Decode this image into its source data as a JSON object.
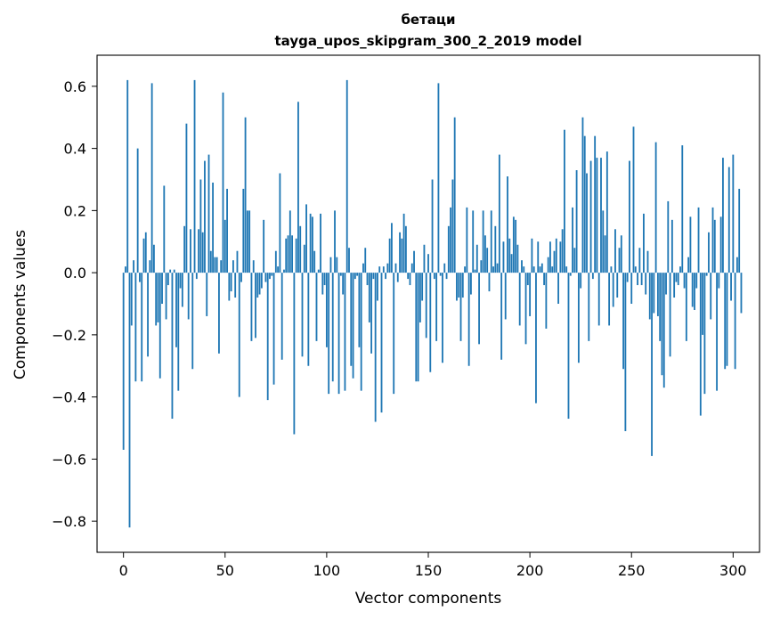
{
  "chart_data": {
    "type": "bar",
    "title": "бетаци",
    "subtitle": "tayga_upos_skipgram_300_2_2019 model",
    "xlabel": "Vector components",
    "ylabel": "Components values",
    "xlim": [
      -13,
      313
    ],
    "ylim": [
      -0.9,
      0.7
    ],
    "xticks": [
      0,
      50,
      100,
      150,
      200,
      250,
      300
    ],
    "yticks": [
      -0.8,
      -0.6,
      -0.4,
      -0.2,
      0.0,
      0.2,
      0.4,
      0.6
    ],
    "ytick_labels": [
      "−0.8",
      "−0.6",
      "−0.4",
      "−0.2",
      "0.0",
      "0.2",
      "0.4",
      "0.6"
    ],
    "bar_color": "#1f77b4",
    "series": [
      {
        "name": "бетаци",
        "values": [
          -0.57,
          0.02,
          0.62,
          -0.82,
          -0.17,
          0.04,
          -0.35,
          0.4,
          -0.03,
          -0.35,
          0.11,
          0.13,
          -0.27,
          0.04,
          0.61,
          0.09,
          -0.17,
          -0.16,
          -0.34,
          -0.1,
          0.28,
          -0.15,
          -0.04,
          0.01,
          -0.47,
          0.01,
          -0.24,
          -0.38,
          -0.05,
          -0.11,
          0.15,
          0.48,
          -0.15,
          0.14,
          -0.31,
          0.62,
          -0.02,
          0.14,
          0.3,
          0.13,
          0.36,
          -0.14,
          0.38,
          0.07,
          0.29,
          0.05,
          0.05,
          -0.26,
          0.04,
          0.58,
          0.17,
          0.27,
          -0.09,
          -0.06,
          0.04,
          -0.08,
          0.07,
          -0.4,
          -0.03,
          0.27,
          0.5,
          0.2,
          0.2,
          -0.22,
          0.04,
          -0.21,
          -0.08,
          -0.07,
          -0.05,
          0.17,
          -0.03,
          -0.41,
          -0.02,
          -0.01,
          -0.36,
          0.07,
          0.02,
          0.32,
          -0.28,
          0.01,
          0.11,
          0.12,
          0.2,
          0.12,
          -0.52,
          0.11,
          0.55,
          0.15,
          -0.27,
          0.09,
          0.22,
          -0.3,
          0.19,
          0.18,
          0.07,
          -0.22,
          0.01,
          0.19,
          -0.07,
          -0.04,
          -0.24,
          -0.39,
          0.05,
          -0.35,
          0.2,
          0.05,
          -0.39,
          -0.01,
          -0.07,
          -0.38,
          0.62,
          0.08,
          -0.3,
          -0.34,
          -0.02,
          -0.01,
          -0.24,
          -0.38,
          0.03,
          0.08,
          -0.04,
          -0.16,
          -0.26,
          -0.02,
          -0.48,
          -0.09,
          0.02,
          -0.45,
          0.02,
          -0.02,
          0.03,
          0.11,
          0.16,
          -0.39,
          0.03,
          -0.03,
          0.13,
          0.11,
          0.19,
          0.15,
          -0.02,
          -0.04,
          0.03,
          0.07,
          -0.35,
          -0.35,
          -0.16,
          -0.09,
          0.09,
          -0.21,
          0.06,
          -0.32,
          0.3,
          -0.02,
          -0.22,
          0.61,
          -0.01,
          -0.29,
          0.03,
          -0.02,
          0.15,
          0.21,
          0.3,
          0.5,
          -0.09,
          -0.08,
          -0.22,
          -0.08,
          0.02,
          0.21,
          -0.3,
          -0.07,
          0.2,
          0.01,
          0.09,
          -0.23,
          0.04,
          0.2,
          0.12,
          0.08,
          -0.06,
          0.2,
          0.02,
          0.15,
          0.03,
          0.38,
          -0.28,
          0.1,
          -0.15,
          0.31,
          0.11,
          0.06,
          0.18,
          0.17,
          0.09,
          -0.17,
          0.04,
          0.02,
          -0.23,
          -0.04,
          -0.14,
          0.11,
          0.02,
          -0.42,
          0.1,
          0.02,
          0.03,
          -0.04,
          -0.18,
          0.05,
          0.1,
          0.02,
          0.07,
          0.11,
          -0.1,
          0.1,
          0.14,
          0.46,
          0.02,
          -0.47,
          -0.01,
          0.21,
          0.08,
          0.33,
          -0.29,
          -0.05,
          0.5,
          0.44,
          0.32,
          -0.22,
          0.36,
          -0.02,
          0.44,
          0.37,
          -0.17,
          0.37,
          0.2,
          0.12,
          0.39,
          -0.17,
          0.02,
          -0.11,
          0.14,
          -0.08,
          0.08,
          0.12,
          -0.31,
          -0.51,
          -0.03,
          0.36,
          -0.1,
          0.47,
          0.02,
          -0.04,
          0.08,
          -0.04,
          0.19,
          -0.07,
          0.07,
          -0.15,
          -0.59,
          -0.13,
          0.42,
          -0.14,
          -0.22,
          -0.33,
          -0.37,
          -0.07,
          0.23,
          -0.27,
          0.17,
          -0.08,
          -0.03,
          -0.04,
          0.02,
          0.41,
          -0.05,
          -0.22,
          0.05,
          0.18,
          -0.11,
          -0.12,
          -0.05,
          0.21,
          -0.46,
          -0.2,
          -0.39,
          -0.01,
          0.13,
          -0.15,
          0.21,
          0.17,
          -0.38,
          -0.05,
          0.18,
          0.37,
          -0.31,
          -0.3,
          0.34,
          -0.09,
          0.38,
          -0.31,
          0.05,
          0.27,
          -0.13
        ]
      }
    ]
  }
}
